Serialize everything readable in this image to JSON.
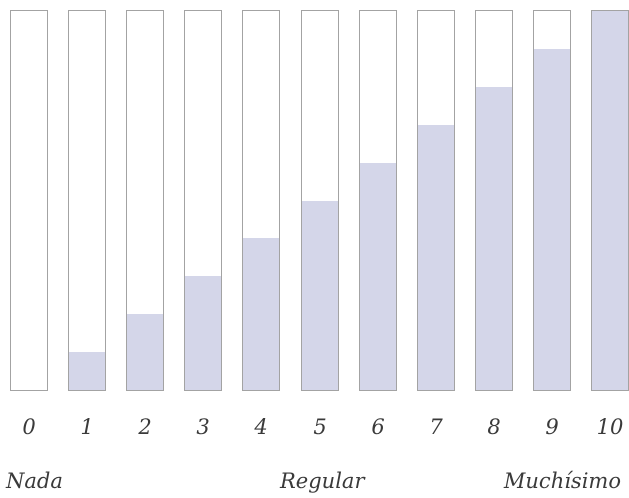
{
  "scale": {
    "options": [
      {
        "label": "0",
        "level": 0.0
      },
      {
        "label": "1",
        "level": 0.1
      },
      {
        "label": "2",
        "level": 0.2
      },
      {
        "label": "3",
        "level": 0.3
      },
      {
        "label": "4",
        "level": 0.4
      },
      {
        "label": "5",
        "level": 0.5
      },
      {
        "label": "6",
        "level": 0.6
      },
      {
        "label": "7",
        "level": 0.7
      },
      {
        "label": "8",
        "level": 0.8
      },
      {
        "label": "9",
        "level": 0.9
      },
      {
        "label": "10",
        "level": 1.0
      }
    ],
    "anchors": {
      "low": "Nada",
      "mid": "Regular",
      "high": "Muchísimo"
    },
    "colors": {
      "fill": "#d4d6e9",
      "border": "#a3a3a3",
      "text": "#3a3a3a"
    }
  }
}
